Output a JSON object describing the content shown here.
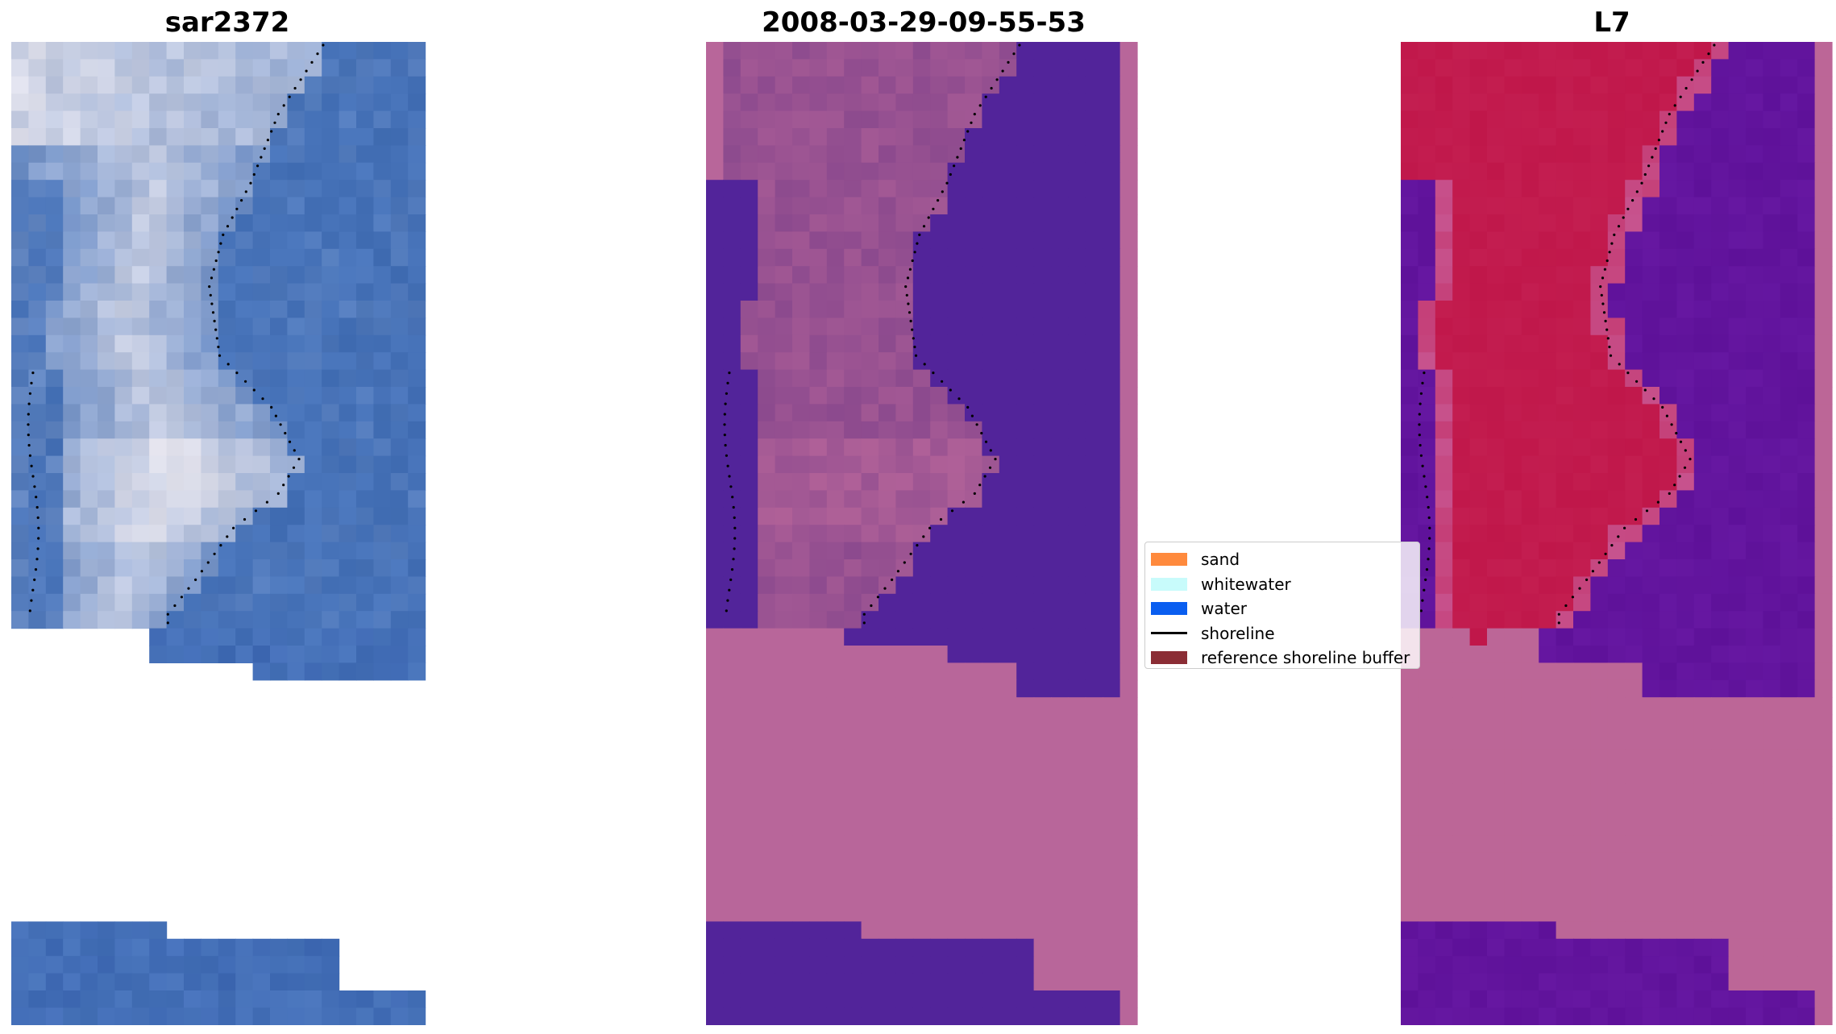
{
  "panels": {
    "left": {
      "title": "sar2372"
    },
    "middle": {
      "title": "2008-03-29-09-55-53"
    },
    "right": {
      "title": "L7"
    }
  },
  "legend": {
    "items": [
      {
        "label": "sand",
        "kind": "patch",
        "color": "#ff8a3d"
      },
      {
        "label": "whitewater",
        "kind": "patch",
        "color": "#c8fbfb"
      },
      {
        "label": "water",
        "kind": "patch",
        "color": "#0a5ef0"
      },
      {
        "label": "shoreline",
        "kind": "line",
        "color": "#000000"
      },
      {
        "label": "reference shoreline buffer",
        "kind": "patch",
        "color": "#8b2d35"
      }
    ]
  },
  "colors": {
    "rgb_water": "#4672b8",
    "rgb_whitewater": "#e8e6ee",
    "mask_sand_region": "#b8669a",
    "mask_water_region": "#52249a",
    "mask_beach_region": "#8c4a8e",
    "index_positive": "#c0174a",
    "index_negative": "#5e1199",
    "nodata_pink": "#bc6697",
    "shoreline_dots": "#000000"
  }
}
